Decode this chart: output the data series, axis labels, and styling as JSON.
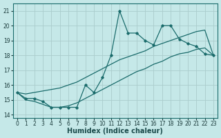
{
  "xlabel": "Humidex (Indice chaleur)",
  "bg_color": "#c5e8e8",
  "grid_color": "#aacccc",
  "line_color": "#1a6b6b",
  "xlim": [
    -0.5,
    23.5
  ],
  "ylim": [
    13.8,
    21.5
  ],
  "yticks": [
    14,
    15,
    16,
    17,
    18,
    19,
    20,
    21
  ],
  "xticks": [
    0,
    1,
    2,
    3,
    4,
    5,
    6,
    7,
    8,
    9,
    10,
    11,
    12,
    13,
    14,
    15,
    16,
    17,
    18,
    19,
    20,
    21,
    22,
    23
  ],
  "main_y": [
    15.5,
    15.1,
    15.1,
    14.9,
    14.5,
    14.5,
    14.5,
    14.5,
    16.0,
    15.5,
    16.5,
    18.0,
    21.0,
    19.5,
    19.5,
    19.0,
    18.7,
    20.0,
    20.0,
    19.1,
    18.8,
    18.6,
    18.1,
    18.0
  ],
  "upper_y": [
    15.5,
    15.4,
    15.5,
    15.6,
    15.7,
    15.8,
    16.0,
    16.2,
    16.5,
    16.8,
    17.1,
    17.4,
    17.7,
    17.9,
    18.1,
    18.3,
    18.6,
    18.8,
    19.0,
    19.2,
    19.4,
    19.6,
    19.7,
    18.0
  ],
  "lower_y": [
    15.5,
    15.0,
    14.9,
    14.7,
    14.5,
    14.5,
    14.6,
    14.8,
    15.1,
    15.4,
    15.7,
    16.0,
    16.3,
    16.6,
    16.9,
    17.1,
    17.4,
    17.6,
    17.9,
    18.1,
    18.2,
    18.4,
    18.5,
    18.0
  ],
  "xlabel_fontsize": 7,
  "tick_fontsize": 5.5
}
